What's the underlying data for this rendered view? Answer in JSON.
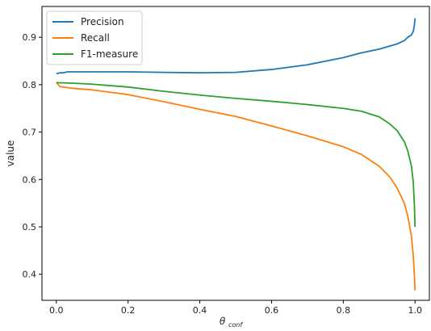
{
  "chart_data": {
    "type": "line",
    "xlabel": "θ",
    "xlabel_sub": "conf",
    "ylabel": "value",
    "xlim": [
      -0.04,
      1.04
    ],
    "ylim": [
      0.345,
      0.965
    ],
    "xticks": [
      0.0,
      0.2,
      0.4,
      0.6,
      0.8,
      1.0
    ],
    "xtick_labels": [
      "0.0",
      "0.2",
      "0.4",
      "0.6",
      "0.8",
      "1.0"
    ],
    "yticks": [
      0.4,
      0.5,
      0.6,
      0.7,
      0.8,
      0.9
    ],
    "ytick_labels": [
      "0.4",
      "0.5",
      "0.6",
      "0.7",
      "0.8",
      "0.9"
    ],
    "grid": false,
    "legend_position": "top-left",
    "series": [
      {
        "name": "Precision",
        "color": "#1f77b4",
        "x": [
          0.0,
          0.01,
          0.02,
          0.03,
          0.05,
          0.1,
          0.2,
          0.3,
          0.4,
          0.5,
          0.6,
          0.7,
          0.8,
          0.85,
          0.9,
          0.95,
          0.97,
          0.98,
          0.99,
          0.995,
          0.998,
          1.0
        ],
        "y": [
          0.823,
          0.825,
          0.825,
          0.827,
          0.827,
          0.827,
          0.827,
          0.826,
          0.825,
          0.826,
          0.832,
          0.842,
          0.857,
          0.867,
          0.875,
          0.886,
          0.893,
          0.9,
          0.905,
          0.912,
          0.925,
          0.94
        ]
      },
      {
        "name": "Recall",
        "color": "#ff7f0e",
        "x": [
          0.0,
          0.01,
          0.05,
          0.1,
          0.2,
          0.3,
          0.4,
          0.5,
          0.6,
          0.7,
          0.8,
          0.85,
          0.9,
          0.93,
          0.95,
          0.97,
          0.98,
          0.99,
          0.995,
          0.998,
          1.0
        ],
        "y": [
          0.805,
          0.796,
          0.792,
          0.789,
          0.779,
          0.764,
          0.748,
          0.733,
          0.713,
          0.692,
          0.669,
          0.653,
          0.628,
          0.605,
          0.582,
          0.55,
          0.522,
          0.48,
          0.44,
          0.4,
          0.366
        ]
      },
      {
        "name": "F1-measure",
        "color": "#2ca02c",
        "x": [
          0.0,
          0.01,
          0.05,
          0.1,
          0.2,
          0.3,
          0.4,
          0.5,
          0.6,
          0.7,
          0.8,
          0.85,
          0.9,
          0.93,
          0.95,
          0.97,
          0.98,
          0.99,
          0.995,
          0.998,
          1.0
        ],
        "y": [
          0.804,
          0.804,
          0.803,
          0.801,
          0.795,
          0.786,
          0.778,
          0.771,
          0.765,
          0.758,
          0.75,
          0.744,
          0.732,
          0.717,
          0.703,
          0.68,
          0.66,
          0.628,
          0.595,
          0.55,
          0.5
        ]
      }
    ]
  }
}
